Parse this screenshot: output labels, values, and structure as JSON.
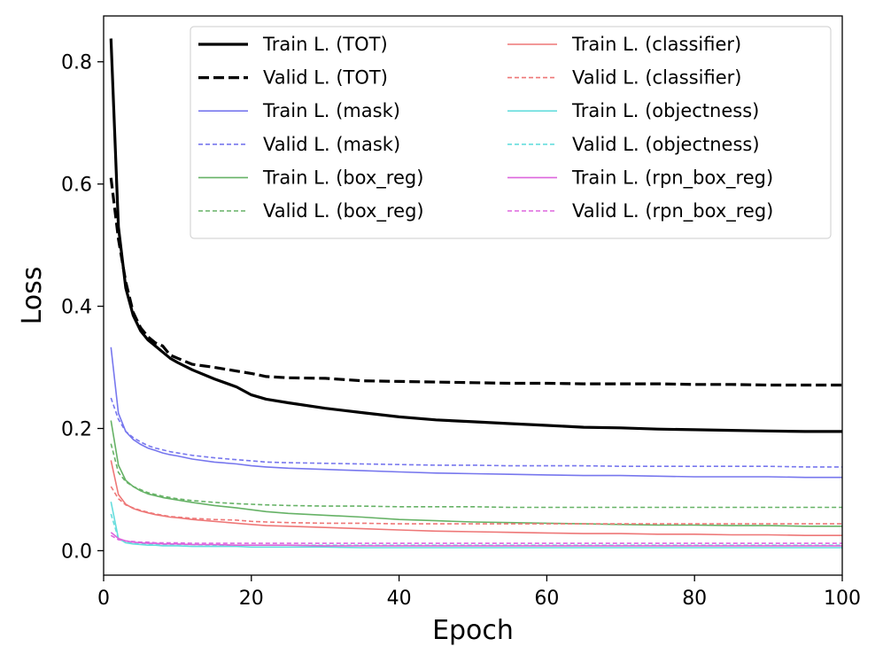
{
  "chart_data": {
    "type": "line",
    "title": "",
    "xlabel": "Epoch",
    "ylabel": "Loss",
    "xlim": [
      0,
      100
    ],
    "ylim": [
      -0.04,
      0.875
    ],
    "x_ticks": [
      0,
      20,
      40,
      60,
      80,
      100
    ],
    "x_tick_labels": [
      "0",
      "20",
      "40",
      "60",
      "80",
      "100"
    ],
    "y_ticks": [
      0.0,
      0.2,
      0.4,
      0.6,
      0.8
    ],
    "y_tick_labels": [
      "0.0",
      "0.2",
      "0.4",
      "0.6",
      "0.8"
    ],
    "grid": false,
    "legend_position": "top-right",
    "legend_columns": 2,
    "x": [
      1,
      2,
      3,
      4,
      5,
      6,
      7,
      8,
      9,
      10,
      12,
      15,
      18,
      20,
      22,
      25,
      30,
      35,
      40,
      45,
      50,
      55,
      60,
      65,
      70,
      75,
      80,
      85,
      90,
      95,
      100
    ],
    "series": [
      {
        "name": "Train L. (TOT)",
        "color": "#000000",
        "style": "solid",
        "width": 3.2,
        "values": [
          0.838,
          0.53,
          0.43,
          0.385,
          0.36,
          0.345,
          0.335,
          0.325,
          0.315,
          0.308,
          0.296,
          0.281,
          0.268,
          0.255,
          0.248,
          0.242,
          0.233,
          0.226,
          0.219,
          0.214,
          0.211,
          0.208,
          0.205,
          0.202,
          0.201,
          0.199,
          0.198,
          0.197,
          0.196,
          0.195,
          0.195
        ]
      },
      {
        "name": "Valid L. (TOT)",
        "color": "#000000",
        "style": "dashed",
        "width": 3.2,
        "values": [
          0.61,
          0.51,
          0.44,
          0.39,
          0.365,
          0.35,
          0.34,
          0.335,
          0.32,
          0.315,
          0.305,
          0.3,
          0.294,
          0.29,
          0.285,
          0.283,
          0.282,
          0.278,
          0.277,
          0.276,
          0.275,
          0.274,
          0.274,
          0.273,
          0.273,
          0.273,
          0.272,
          0.272,
          0.271,
          0.271,
          0.271
        ]
      },
      {
        "name": "Train L. (mask)",
        "color": "#7777ee",
        "style": "solid",
        "width": 1.6,
        "values": [
          0.333,
          0.225,
          0.195,
          0.182,
          0.174,
          0.168,
          0.164,
          0.16,
          0.157,
          0.155,
          0.15,
          0.145,
          0.142,
          0.139,
          0.137,
          0.135,
          0.133,
          0.131,
          0.129,
          0.127,
          0.126,
          0.125,
          0.124,
          0.123,
          0.123,
          0.122,
          0.121,
          0.121,
          0.121,
          0.12,
          0.12
        ]
      },
      {
        "name": "Valid L. (mask)",
        "color": "#7777ee",
        "style": "dashed",
        "width": 1.6,
        "values": [
          0.25,
          0.215,
          0.195,
          0.185,
          0.178,
          0.172,
          0.168,
          0.165,
          0.162,
          0.16,
          0.156,
          0.152,
          0.149,
          0.147,
          0.145,
          0.144,
          0.143,
          0.142,
          0.141,
          0.14,
          0.14,
          0.139,
          0.139,
          0.139,
          0.138,
          0.138,
          0.138,
          0.138,
          0.138,
          0.137,
          0.137
        ]
      },
      {
        "name": "Train L. (box_reg)",
        "color": "#66b266",
        "style": "solid",
        "width": 1.6,
        "values": [
          0.213,
          0.14,
          0.115,
          0.105,
          0.098,
          0.093,
          0.09,
          0.087,
          0.085,
          0.083,
          0.079,
          0.074,
          0.07,
          0.067,
          0.064,
          0.061,
          0.058,
          0.055,
          0.051,
          0.049,
          0.047,
          0.046,
          0.045,
          0.044,
          0.043,
          0.042,
          0.042,
          0.041,
          0.041,
          0.04,
          0.04
        ]
      },
      {
        "name": "Valid L. (box_reg)",
        "color": "#66b266",
        "style": "dashed",
        "width": 1.6,
        "values": [
          0.175,
          0.128,
          0.113,
          0.105,
          0.1,
          0.095,
          0.092,
          0.089,
          0.087,
          0.085,
          0.082,
          0.079,
          0.077,
          0.076,
          0.075,
          0.074,
          0.073,
          0.073,
          0.072,
          0.072,
          0.072,
          0.071,
          0.071,
          0.071,
          0.071,
          0.071,
          0.071,
          0.071,
          0.071,
          0.071,
          0.071
        ]
      },
      {
        "name": "Train L. (classifier)",
        "color": "#ee7777",
        "style": "solid",
        "width": 1.6,
        "values": [
          0.148,
          0.092,
          0.076,
          0.069,
          0.065,
          0.062,
          0.059,
          0.057,
          0.055,
          0.054,
          0.051,
          0.048,
          0.045,
          0.043,
          0.041,
          0.04,
          0.038,
          0.036,
          0.034,
          0.032,
          0.031,
          0.03,
          0.029,
          0.028,
          0.028,
          0.027,
          0.027,
          0.026,
          0.026,
          0.025,
          0.025
        ]
      },
      {
        "name": "Valid L. (classifier)",
        "color": "#ee7777",
        "style": "dashed",
        "width": 1.6,
        "values": [
          0.105,
          0.085,
          0.075,
          0.07,
          0.066,
          0.063,
          0.06,
          0.058,
          0.056,
          0.055,
          0.053,
          0.051,
          0.05,
          0.048,
          0.047,
          0.046,
          0.045,
          0.045,
          0.044,
          0.044,
          0.044,
          0.044,
          0.044,
          0.044,
          0.044,
          0.044,
          0.044,
          0.044,
          0.044,
          0.044,
          0.044
        ]
      },
      {
        "name": "Train L. (objectness)",
        "color": "#66dddd",
        "style": "solid",
        "width": 1.6,
        "values": [
          0.08,
          0.02,
          0.013,
          0.011,
          0.01,
          0.009,
          0.009,
          0.008,
          0.008,
          0.008,
          0.007,
          0.007,
          0.007,
          0.006,
          0.006,
          0.006,
          0.006,
          0.005,
          0.005,
          0.005,
          0.005,
          0.005,
          0.005,
          0.005,
          0.005,
          0.005,
          0.005,
          0.005,
          0.005,
          0.005,
          0.005
        ]
      },
      {
        "name": "Valid L. (objectness)",
        "color": "#66dddd",
        "style": "dashed",
        "width": 1.6,
        "values": [
          0.06,
          0.02,
          0.014,
          0.012,
          0.011,
          0.011,
          0.01,
          0.01,
          0.01,
          0.01,
          0.01,
          0.009,
          0.009,
          0.009,
          0.009,
          0.009,
          0.009,
          0.009,
          0.009,
          0.009,
          0.009,
          0.009,
          0.009,
          0.009,
          0.009,
          0.009,
          0.009,
          0.009,
          0.009,
          0.009,
          0.009
        ]
      },
      {
        "name": "Train L. (rpn_box_reg)",
        "color": "#dd66dd",
        "style": "solid",
        "width": 1.6,
        "values": [
          0.03,
          0.02,
          0.016,
          0.014,
          0.013,
          0.012,
          0.012,
          0.011,
          0.011,
          0.011,
          0.01,
          0.01,
          0.009,
          0.009,
          0.009,
          0.009,
          0.008,
          0.008,
          0.008,
          0.008,
          0.008,
          0.008,
          0.008,
          0.008,
          0.008,
          0.008,
          0.008,
          0.008,
          0.008,
          0.008,
          0.008
        ]
      },
      {
        "name": "Valid L. (rpn_box_reg)",
        "color": "#dd66dd",
        "style": "dashed",
        "width": 1.6,
        "values": [
          0.025,
          0.018,
          0.016,
          0.015,
          0.014,
          0.014,
          0.013,
          0.013,
          0.013,
          0.013,
          0.012,
          0.012,
          0.012,
          0.012,
          0.012,
          0.012,
          0.012,
          0.012,
          0.012,
          0.012,
          0.012,
          0.012,
          0.012,
          0.012,
          0.012,
          0.012,
          0.012,
          0.012,
          0.012,
          0.012,
          0.012
        ]
      }
    ]
  }
}
